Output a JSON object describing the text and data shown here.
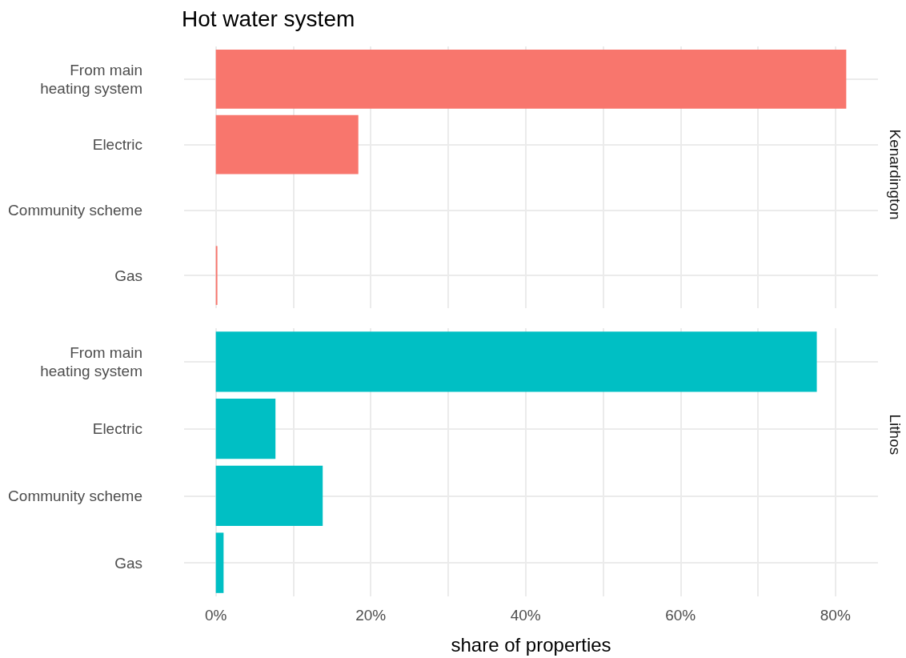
{
  "chart_data": [
    {
      "type": "bar",
      "title": "Hot water system",
      "annotations": [
        "Kenardington"
      ],
      "orientation": "horizontal",
      "categories": [
        "From main\nheating system",
        "Electric",
        "Community scheme",
        "Gas"
      ],
      "values": [
        81.4,
        18.4,
        0,
        0.2
      ],
      "color": "#f8766d",
      "xlim": [
        -4.1,
        85.5
      ],
      "xticks": [
        0,
        10,
        20,
        30,
        40,
        50,
        60,
        70,
        80
      ],
      "grid": true,
      "tick_labels": "y"
    },
    {
      "type": "bar",
      "xlabel": "share of properties",
      "annotations": [
        "Lithos"
      ],
      "orientation": "horizontal",
      "categories": [
        "From main\nheating system",
        "Electric",
        "Community scheme",
        "Gas"
      ],
      "values": [
        77.6,
        7.7,
        13.8,
        1.0
      ],
      "color": "#00bfc4",
      "xlim": [
        -4.1,
        85.5
      ],
      "xticks": [
        {
          "value": 0,
          "label": "0%"
        },
        {
          "value": 10,
          "label": null
        },
        {
          "value": 20,
          "label": "20%"
        },
        {
          "value": 30,
          "label": null
        },
        {
          "value": 40,
          "label": "40%"
        },
        {
          "value": 50,
          "label": null
        },
        {
          "value": 60,
          "label": "60%"
        },
        {
          "value": 70,
          "label": null
        },
        {
          "value": 80,
          "label": "80%"
        }
      ],
      "grid": true
    }
  ]
}
